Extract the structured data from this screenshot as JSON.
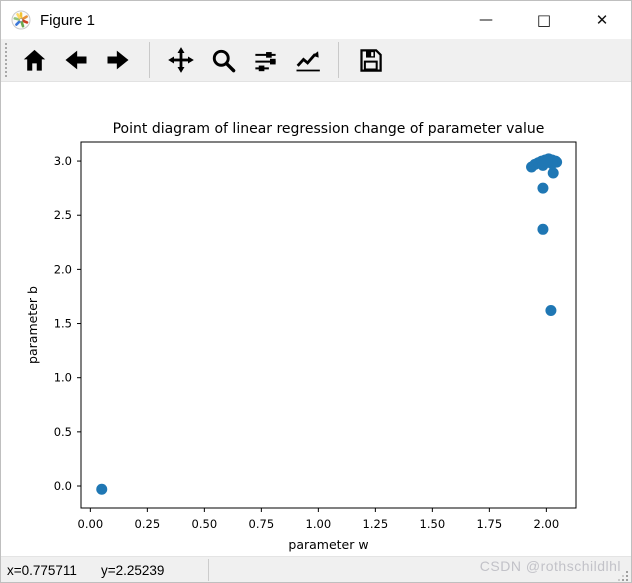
{
  "window": {
    "title": "Figure 1",
    "icon": "matplotlib-logo-icon",
    "controls": [
      {
        "id": "minimize",
        "glyph": "—"
      },
      {
        "id": "maximize",
        "glyph": "□"
      },
      {
        "id": "close",
        "glyph": "✕"
      }
    ]
  },
  "toolbar": {
    "buttons": [
      {
        "id": "home",
        "icon": "home-icon"
      },
      {
        "id": "back",
        "icon": "arrow-left-icon"
      },
      {
        "id": "forward",
        "icon": "arrow-right-icon"
      },
      {
        "id": "pan",
        "icon": "move-arrows-icon"
      },
      {
        "id": "zoom",
        "icon": "magnifier-icon"
      },
      {
        "id": "configure-subplots",
        "icon": "sliders-icon"
      },
      {
        "id": "edit-axes",
        "icon": "chart-line-icon"
      },
      {
        "id": "save",
        "icon": "floppy-disk-icon"
      }
    ]
  },
  "statusbar": {
    "x_readout": "x=0.775711",
    "y_readout": "y=2.25239",
    "watermark": "CSDN @rothschildlhl"
  },
  "colors": {
    "marker": "#1f77b4",
    "toolbar_bg": "#f0f0f0",
    "statusbar_bg": "#f0f0f0",
    "watermark_text": "#c2c2c8"
  },
  "chart_data": {
    "type": "scatter",
    "title": "Point diagram of linear regression change of parameter value",
    "xlabel": "parameter w",
    "ylabel": "parameter b",
    "xlim": [
      -0.041,
      2.13
    ],
    "ylim": [
      -0.203,
      3.176
    ],
    "grid": false,
    "legend": null,
    "xtick_values": [
      0.0,
      0.25,
      0.5,
      0.75,
      1.0,
      1.25,
      1.5,
      1.75,
      2.0
    ],
    "xtick_labels": [
      "0.00",
      "0.25",
      "0.50",
      "0.75",
      "1.00",
      "1.25",
      "1.50",
      "1.75",
      "2.00"
    ],
    "ytick_values": [
      0.0,
      0.5,
      1.0,
      1.5,
      2.0,
      2.5,
      3.0
    ],
    "ytick_labels": [
      "0.0",
      "0.5",
      "1.0",
      "1.5",
      "2.0",
      "2.5",
      "3.0"
    ],
    "marker_color": "#1f77b4",
    "marker_radius_px": 5.5,
    "points": [
      [
        0.05,
        -0.03
      ],
      [
        2.02,
        1.62
      ],
      [
        1.985,
        2.37
      ],
      [
        1.985,
        2.75
      ],
      [
        2.03,
        2.89
      ],
      [
        1.935,
        2.945
      ],
      [
        1.95,
        2.97
      ],
      [
        1.965,
        2.985
      ],
      [
        1.98,
        3.0
      ],
      [
        1.995,
        3.01
      ],
      [
        2.01,
        3.02
      ],
      [
        2.025,
        3.01
      ],
      [
        2.04,
        3.0
      ],
      [
        2.045,
        2.99
      ],
      [
        2.025,
        2.975
      ],
      [
        2.005,
        2.995
      ],
      [
        1.985,
        2.96
      ]
    ]
  }
}
